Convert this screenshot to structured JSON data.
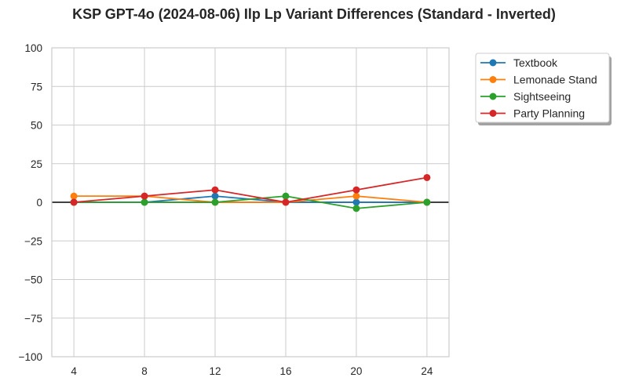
{
  "chart_data": {
    "type": "line",
    "title": "KSP GPT-4o (2024-08-06) Ilp Lp Variant Differences (Standard - Inverted)",
    "xlabel": "",
    "ylabel": "",
    "x": [
      4,
      8,
      12,
      16,
      20,
      24
    ],
    "xticks": [
      "4",
      "8",
      "12",
      "16",
      "20",
      "24"
    ],
    "ylim": [
      -100,
      100
    ],
    "yticks": [
      "100",
      "75",
      "50",
      "25",
      "0",
      "−25",
      "−50",
      "−75",
      "−100"
    ],
    "ytick_values": [
      100,
      75,
      50,
      25,
      0,
      -25,
      -50,
      -75,
      -100
    ],
    "grid": true,
    "legend_position": "outside-top-right",
    "series": [
      {
        "name": "Textbook",
        "color": "#1f77b4",
        "values": [
          0,
          0,
          4,
          0,
          0,
          0
        ]
      },
      {
        "name": "Lemonade Stand",
        "color": "#ff7f0e",
        "values": [
          4,
          4,
          0,
          0,
          4,
          0
        ]
      },
      {
        "name": "Sightseeing",
        "color": "#2ca02c",
        "values": [
          0,
          0,
          0,
          4,
          -4,
          0
        ]
      },
      {
        "name": "Party Planning",
        "color": "#d62728",
        "values": [
          0,
          4,
          8,
          0,
          8,
          16
        ]
      }
    ]
  }
}
